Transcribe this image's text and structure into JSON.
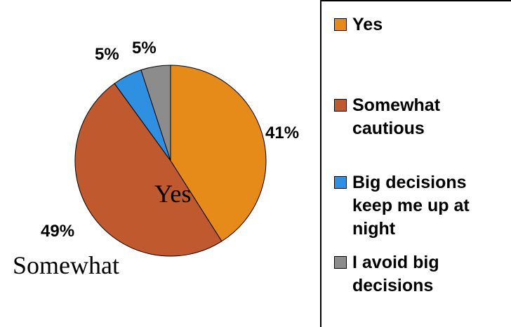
{
  "chart_data": {
    "type": "pie",
    "title": "",
    "slices": [
      {
        "label": "Yes",
        "value": 41,
        "color": "#e68a1a",
        "pct_label": "41%"
      },
      {
        "label": "Somewhat cautious",
        "value": 49,
        "color": "#c0592e",
        "pct_label": "49%"
      },
      {
        "label": "Big decisions keep me up at night",
        "value": 5,
        "color": "#2f8fe0",
        "pct_label": "5%"
      },
      {
        "label": "I avoid big decisions",
        "value": 5,
        "color": "#8c8c8c",
        "pct_label": "5%"
      }
    ],
    "overlay_labels": [
      "Yes",
      "Somewhat"
    ],
    "legend_position": "right"
  }
}
